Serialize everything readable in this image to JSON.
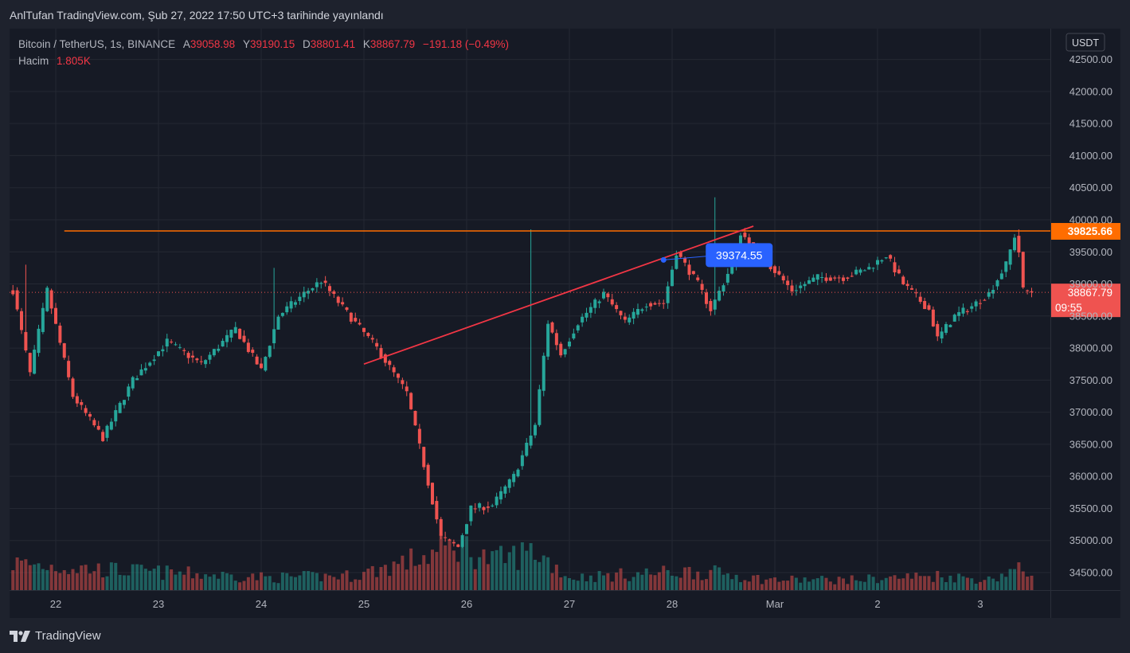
{
  "header": {
    "title": "AnlTufan TradingView.com, Şub 27, 2022 17:50 UTC+3 tarihinde yayınlandı"
  },
  "legend": {
    "symbol": "Bitcoin / TetherUS, 1s, BINANCE",
    "open_label": "A",
    "open": "39058.98",
    "high_label": "Y",
    "high": "39190.15",
    "low_label": "D",
    "low": "38801.41",
    "close_label": "K",
    "close": "38867.79",
    "change": "−191.18 (−0.49%)",
    "volume_label": "Hacim",
    "volume": "1.805K"
  },
  "price_axis": {
    "currency": "USDT",
    "ticks": [
      "42500.00",
      "42000.00",
      "41500.00",
      "41000.00",
      "40500.00",
      "40000.00",
      "39500.00",
      "39000.00",
      "38500.00",
      "38000.00",
      "37500.00",
      "37000.00",
      "36500.00",
      "36000.00",
      "35500.00",
      "35000.00",
      "34500.00"
    ]
  },
  "time_axis": {
    "ticks": [
      "22",
      "23",
      "24",
      "25",
      "26",
      "27",
      "28",
      "Mar",
      "2",
      "3"
    ]
  },
  "markers": {
    "resistance_label": "39825.66",
    "last_price_label": "38867.79",
    "countdown": "09:55",
    "trendline_tooltip": "39374.55"
  },
  "colors": {
    "up": "#26a69a",
    "down": "#ef5350",
    "resistance": "#ff6d00",
    "trendline": "#f23645",
    "tooltip": "#2962ff"
  },
  "brand": {
    "name": "TradingView"
  },
  "chart_data": {
    "type": "candlestick",
    "title": "Bitcoin / TetherUS, 1s, BINANCE",
    "xlabel": "",
    "ylabel": "",
    "ylim": [
      34100,
      42700
    ],
    "x_range": [
      "2022-02-21T14:00",
      "2022-03-03T22:00"
    ],
    "grid": true,
    "legend": "top-left",
    "bar_interval_hours": 1,
    "anchor_time": "2022-02-21T14:00",
    "path_points": [
      [
        0,
        38900
      ],
      [
        4,
        37600
      ],
      [
        8,
        38900
      ],
      [
        14,
        37250
      ],
      [
        21,
        36600
      ],
      [
        28,
        37500
      ],
      [
        36,
        38100
      ],
      [
        44,
        37750
      ],
      [
        52,
        38300
      ],
      [
        58,
        37650
      ],
      [
        62,
        38500
      ],
      [
        68,
        38850
      ],
      [
        72,
        39050
      ],
      [
        78,
        38550
      ],
      [
        85,
        38000
      ],
      [
        92,
        37300
      ],
      [
        97,
        35900
      ],
      [
        100,
        35050
      ],
      [
        104,
        34900
      ],
      [
        107,
        35500
      ],
      [
        112,
        35550
      ],
      [
        117,
        36000
      ],
      [
        122,
        36800
      ],
      [
        125,
        38400
      ],
      [
        128,
        37900
      ],
      [
        132,
        38400
      ],
      [
        138,
        38850
      ],
      [
        143,
        38400
      ],
      [
        148,
        38700
      ],
      [
        152,
        38700
      ],
      [
        155,
        39500
      ],
      [
        160,
        39000
      ],
      [
        163,
        38600
      ],
      [
        168,
        39300
      ],
      [
        170,
        39800
      ],
      [
        174,
        39500
      ],
      [
        178,
        39200
      ],
      [
        182,
        38900
      ],
      [
        188,
        39100
      ],
      [
        194,
        39100
      ],
      [
        200,
        39250
      ],
      [
        204,
        39450
      ],
      [
        208,
        39000
      ],
      [
        214,
        38600
      ],
      [
        216,
        38150
      ],
      [
        220,
        38500
      ],
      [
        224,
        38650
      ],
      [
        228,
        38850
      ],
      [
        232,
        39300
      ],
      [
        234,
        39750
      ],
      [
        235,
        39500
      ],
      [
        236,
        38900
      ],
      [
        238,
        38870
      ]
    ],
    "wick_spikes": [
      [
        3,
        39300
      ],
      [
        61,
        39250
      ],
      [
        121,
        39850
      ],
      [
        164,
        40350
      ],
      [
        235,
        39850
      ]
    ],
    "volume_profile": [
      [
        0,
        1.3
      ],
      [
        20,
        1.0
      ],
      [
        40,
        0.8
      ],
      [
        60,
        0.6
      ],
      [
        80,
        0.7
      ],
      [
        96,
        1.6
      ],
      [
        104,
        2.2
      ],
      [
        112,
        1.4
      ],
      [
        122,
        1.9
      ],
      [
        130,
        0.6
      ],
      [
        148,
        0.8
      ],
      [
        158,
        0.9
      ],
      [
        166,
        0.8
      ],
      [
        176,
        0.5
      ],
      [
        196,
        0.5
      ],
      [
        216,
        0.7
      ],
      [
        228,
        0.5
      ],
      [
        234,
        1.0
      ],
      [
        238,
        0.8
      ]
    ],
    "volume_unit": "K",
    "resistance_level": 39825.66,
    "last_price": 38867.79,
    "trendline": {
      "start": {
        "time": "2022-02-25T00:00",
        "price": 37750
      },
      "end": {
        "time": "2022-02-28T19:00",
        "price": 39900
      },
      "tooltip_point": {
        "time": "2022-02-27T22:00",
        "price": 39374.55
      }
    },
    "resistance_start_time": "2022-02-22T02:00"
  }
}
